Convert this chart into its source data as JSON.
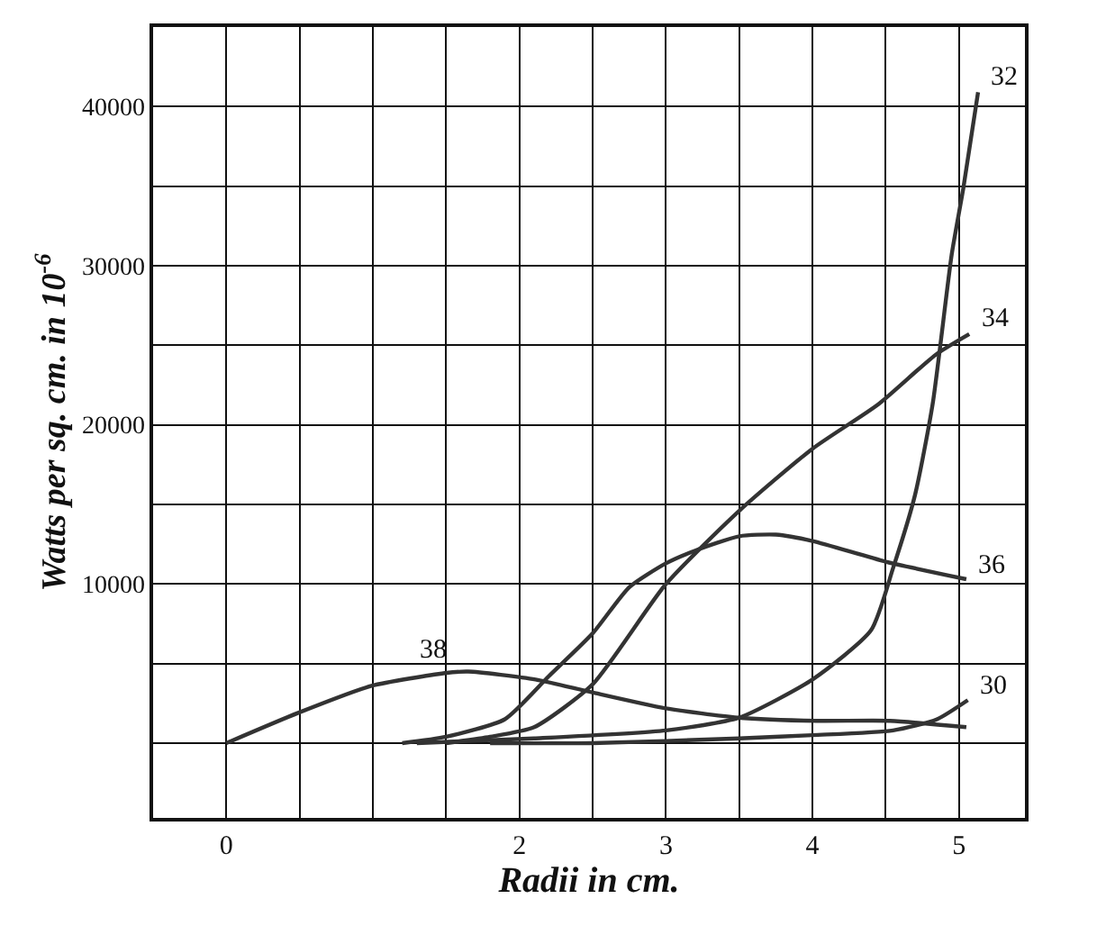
{
  "chart_data": {
    "type": "line",
    "xlabel": "Radii in cm.",
    "ylabel": "Watts per sq. cm. in 10$^{-6}$",
    "xlim": [
      -0.5,
      5.45
    ],
    "ylim": [
      -4700,
      45000
    ],
    "xticks": [
      {
        "value": -0.5,
        "label": null
      },
      {
        "value": 0,
        "label": "0"
      },
      {
        "value": 0.5,
        "label": null
      },
      {
        "value": 1,
        "label": null
      },
      {
        "value": 1.5,
        "label": null
      },
      {
        "value": 2,
        "label": "2"
      },
      {
        "value": 2.5,
        "label": null
      },
      {
        "value": 3,
        "label": "3"
      },
      {
        "value": 3.5,
        "label": null
      },
      {
        "value": 4,
        "label": "4"
      },
      {
        "value": 4.5,
        "label": null
      },
      {
        "value": 5,
        "label": "5"
      }
    ],
    "yticks": [
      {
        "value": 0,
        "label": null
      },
      {
        "value": 5000,
        "label": null
      },
      10000,
      {
        "value": 15000,
        "label": null
      },
      20000,
      {
        "value": 25000,
        "label": null
      },
      30000,
      {
        "value": 35000,
        "label": null
      },
      40000
    ],
    "grid": true,
    "legend": false,
    "marker": "none",
    "line_style": "solid",
    "series": [
      {
        "name": "38",
        "color": "#333333",
        "x": [
          0,
          0.49,
          0.99,
          1.49,
          1.65,
          2.11,
          2.49,
          2.99,
          3.49,
          4.03,
          4.53,
          5.05
        ],
        "values": [
          0,
          1900,
          3600,
          4400,
          4500,
          4000,
          3200,
          2200,
          1600,
          1400,
          1400,
          1000
        ]
      },
      {
        "name": "36",
        "color": "#333333",
        "x": [
          1.2,
          1.5,
          1.9,
          2.2,
          2.5,
          2.75,
          3.0,
          3.2,
          3.5,
          3.75,
          4.0,
          4.5,
          5.05
        ],
        "values": [
          0,
          400,
          1500,
          4200,
          6900,
          9800,
          11300,
          12100,
          13000,
          13100,
          12700,
          11400,
          10300
        ]
      },
      {
        "name": "34",
        "color": "#333333",
        "x": [
          1.5,
          1.8,
          2.1,
          2.5,
          3.0,
          3.5,
          4.0,
          4.45,
          4.84,
          5.07
        ],
        "values": [
          0,
          400,
          1000,
          3700,
          10000,
          14600,
          18500,
          21300,
          24400,
          25700
        ]
      },
      {
        "name": "32",
        "color": "#333333",
        "x": [
          1.3,
          2.1,
          3.0,
          3.5,
          4.0,
          4.4,
          4.55,
          4.7,
          4.82,
          4.95,
          5.03,
          5.13
        ],
        "values": [
          0,
          300,
          800,
          1600,
          4000,
          7100,
          11000,
          15600,
          21300,
          30700,
          34900,
          40900
        ]
      },
      {
        "name": "30",
        "color": "#333333",
        "x": [
          1.8,
          2.5,
          3.5,
          4.0,
          4.55,
          4.85,
          5.06
        ],
        "values": [
          0,
          0,
          300,
          500,
          800,
          1500,
          2700
        ]
      }
    ]
  }
}
